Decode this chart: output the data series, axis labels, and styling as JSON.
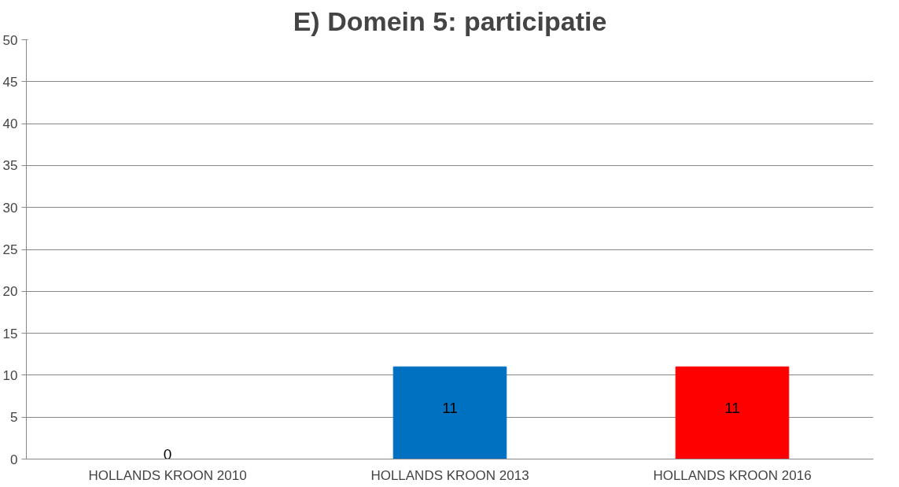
{
  "chart_data": {
    "type": "bar",
    "title": "E) Domein 5: participatie",
    "categories": [
      "HOLLANDS KROON 2010",
      "HOLLANDS KROON 2013",
      "HOLLANDS KROON 2016"
    ],
    "values": [
      0,
      11,
      11
    ],
    "colors": [
      "#0070c0",
      "#0070c0",
      "#ff0000"
    ],
    "ylim": [
      0,
      50
    ],
    "yticks": [
      0,
      5,
      10,
      15,
      20,
      25,
      30,
      35,
      40,
      45,
      50
    ],
    "grid": "y",
    "data_labels": true
  }
}
